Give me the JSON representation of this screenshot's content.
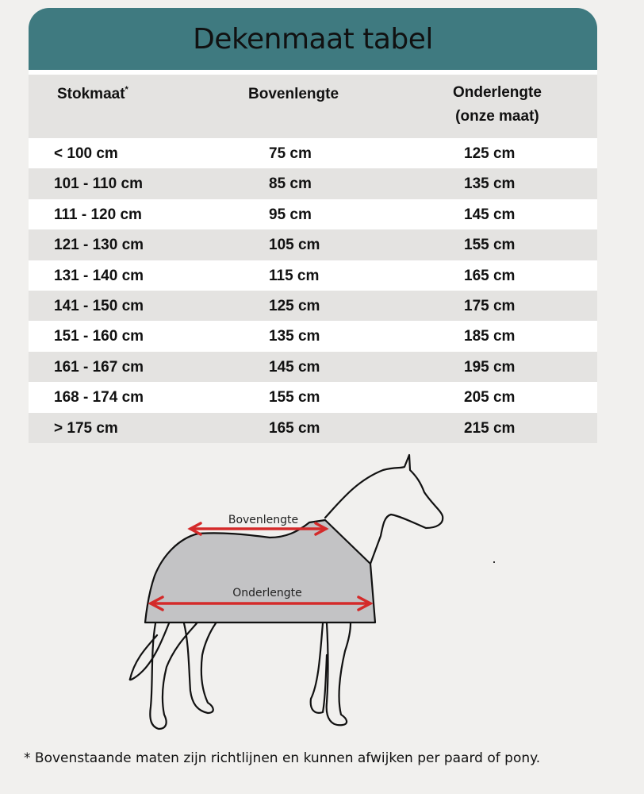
{
  "title": "Dekenmaat tabel",
  "table": {
    "headers": {
      "stokmaat": "Stokmaat",
      "stokmaat_mark": "*",
      "bovenlengte": "Bovenlengte",
      "onderlengte_line1": "Onderlengte",
      "onderlengte_line2": "(onze maat)"
    },
    "rows": [
      {
        "stokmaat": "< 100 cm",
        "bovenlengte": "75 cm",
        "onderlengte": "125 cm"
      },
      {
        "stokmaat": "101 - 110 cm",
        "bovenlengte": "85 cm",
        "onderlengte": "135 cm"
      },
      {
        "stokmaat": "111 - 120 cm",
        "bovenlengte": "95 cm",
        "onderlengte": "145 cm"
      },
      {
        "stokmaat": "121 - 130 cm",
        "bovenlengte": "105 cm",
        "onderlengte": "155 cm"
      },
      {
        "stokmaat": "131 - 140 cm",
        "bovenlengte": "115 cm",
        "onderlengte": "165 cm"
      },
      {
        "stokmaat": "141 - 150 cm",
        "bovenlengte": "125 cm",
        "onderlengte": "175 cm"
      },
      {
        "stokmaat": "151 - 160 cm",
        "bovenlengte": "135 cm",
        "onderlengte": "185 cm"
      },
      {
        "stokmaat": "161 - 167 cm",
        "bovenlengte": "145 cm",
        "onderlengte": "195 cm"
      },
      {
        "stokmaat": "168 - 174 cm",
        "bovenlengte": "155 cm",
        "onderlengte": "205 cm"
      },
      {
        "stokmaat": "> 175 cm",
        "bovenlengte": "165 cm",
        "onderlengte": "215 cm"
      }
    ]
  },
  "diagram": {
    "label_top": "Bovenlengte",
    "label_bottom": "Onderlengte",
    "arrow_color": "#d42a2a",
    "blanket_color": "#c3c3c5"
  },
  "footnote": "* Bovenstaande maten zijn richtlijnen en kunnen afwijken per paard of pony.",
  "colors": {
    "header": "#3f7a80",
    "row_alt": "#e4e3e1"
  }
}
